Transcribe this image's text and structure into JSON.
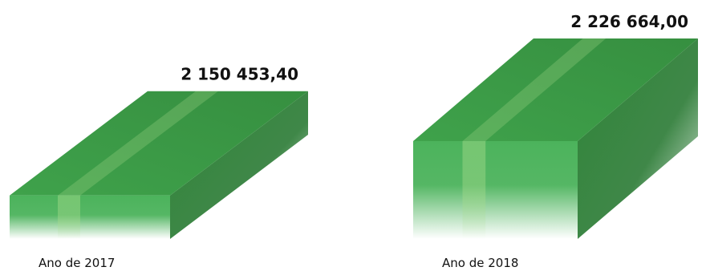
{
  "chart_data": {
    "type": "bar",
    "style": "3d-block",
    "categories": [
      "Ano de 2017",
      "Ano de 2018"
    ],
    "values": [
      2150453.4,
      2226664.0
    ],
    "value_labels": [
      "2 150 453,40",
      "2 226 664,00"
    ],
    "title": "",
    "xlabel": "",
    "ylabel": "",
    "legend": "none",
    "grid": false,
    "colors": {
      "front": "#4cb35c",
      "top": "#3b9644",
      "side": "#2a7a34",
      "highlight": "#8fd07a",
      "label": "#111111"
    }
  }
}
